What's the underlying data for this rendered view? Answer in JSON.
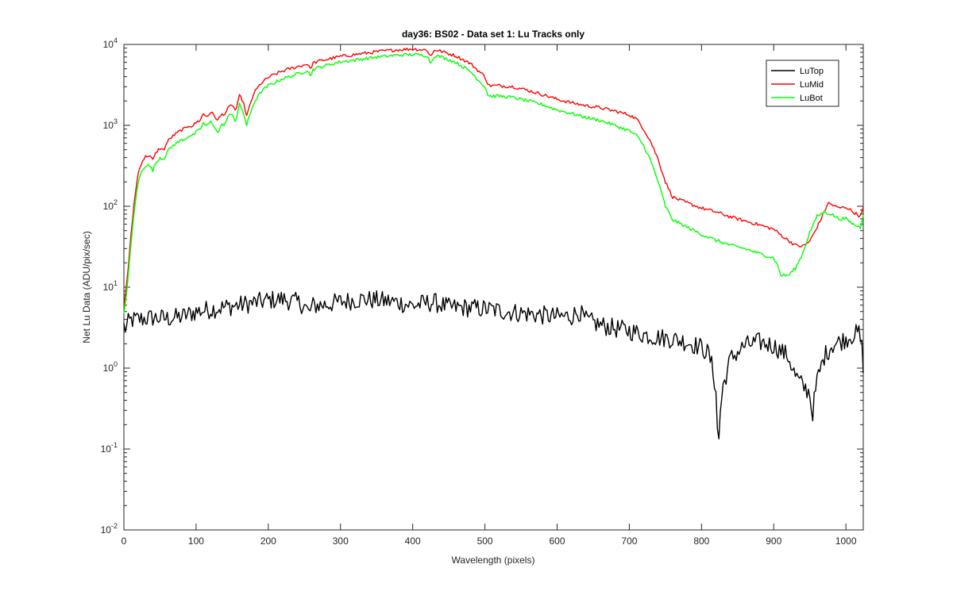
{
  "chart_data": {
    "type": "line",
    "title": "day36: BS02 - Data set 1: Lu Tracks only",
    "xlabel": "Wavelength (pixels)",
    "ylabel": "Net Lu Data (ADU/pix/sec)",
    "xlim": [
      0,
      1024
    ],
    "ylim": [
      0.01,
      10000
    ],
    "yscale": "log",
    "grid": false,
    "legend_position": "top-right",
    "x_ticks": [
      "0",
      "100",
      "200",
      "300",
      "400",
      "500",
      "600",
      "700",
      "800",
      "900",
      "1000"
    ],
    "y_ticks": [
      {
        "base": "10",
        "exp": "-2"
      },
      {
        "base": "10",
        "exp": "-1"
      },
      {
        "base": "10",
        "exp": "0"
      },
      {
        "base": "10",
        "exp": "1"
      },
      {
        "base": "10",
        "exp": "2"
      },
      {
        "base": "10",
        "exp": "3"
      },
      {
        "base": "10",
        "exp": "4"
      }
    ],
    "series": [
      {
        "name": "LuTop",
        "color": "#000000",
        "noise": 0.12,
        "x": [
          0,
          3,
          6,
          10,
          20,
          40,
          60,
          80,
          100,
          130,
          160,
          180,
          200,
          220,
          240,
          250,
          256,
          262,
          280,
          300,
          330,
          350,
          380,
          400,
          420,
          430,
          450,
          470,
          500,
          530,
          560,
          600,
          620,
          630,
          640,
          660,
          680,
          700,
          720,
          740,
          760,
          780,
          800,
          810,
          815,
          820,
          823,
          826,
          830,
          840,
          860,
          880,
          900,
          920,
          930,
          940,
          950,
          953,
          960,
          970,
          980,
          1000,
          1010,
          1018,
          1022,
          1024
        ],
        "y": [
          3.3,
          3.0,
          3.6,
          3.9,
          4.0,
          4.2,
          4.1,
          4.3,
          5.0,
          5.5,
          6.0,
          6.4,
          6.9,
          7.1,
          6.5,
          6.0,
          4.8,
          5.9,
          6.1,
          6.6,
          7.1,
          6.9,
          6.5,
          5.9,
          6.4,
          6.5,
          5.6,
          5.6,
          5.4,
          5.0,
          4.7,
          4.3,
          4.4,
          5.0,
          3.9,
          3.4,
          3.1,
          2.9,
          2.6,
          2.4,
          2.3,
          2.1,
          1.8,
          1.5,
          1.0,
          0.55,
          0.09,
          0.3,
          0.6,
          1.3,
          1.9,
          2.1,
          1.9,
          1.4,
          0.8,
          0.6,
          0.5,
          0.25,
          0.7,
          1.4,
          1.9,
          2.3,
          2.6,
          2.7,
          1.8,
          1.1
        ]
      },
      {
        "name": "LuMid",
        "color": "#ff0000",
        "noise": 0.02,
        "x": [
          0,
          5,
          10,
          15,
          20,
          25,
          30,
          35,
          40,
          45,
          50,
          55,
          60,
          65,
          70,
          75,
          80,
          85,
          90,
          95,
          100,
          105,
          110,
          115,
          120,
          125,
          130,
          135,
          140,
          145,
          150,
          155,
          160,
          165,
          170,
          180,
          190,
          200,
          210,
          220,
          230,
          240,
          250,
          255,
          258,
          262,
          270,
          280,
          290,
          300,
          320,
          340,
          360,
          380,
          400,
          420,
          425,
          430,
          440,
          460,
          480,
          500,
          505,
          520,
          540,
          560,
          580,
          600,
          620,
          640,
          660,
          680,
          700,
          710,
          720,
          730,
          740,
          750,
          760,
          780,
          800,
          820,
          840,
          860,
          880,
          900,
          910,
          920,
          930,
          940,
          950,
          960,
          970,
          975,
          980,
          990,
          1000,
          1010,
          1020,
          1024
        ],
        "y": [
          5.5,
          14,
          45,
          130,
          260,
          360,
          410,
          430,
          370,
          470,
          520,
          490,
          620,
          700,
          760,
          820,
          880,
          910,
          1000,
          980,
          1080,
          1150,
          1380,
          1280,
          1450,
          1330,
          1150,
          1350,
          1400,
          1650,
          1800,
          1500,
          2300,
          2000,
          1300,
          2500,
          3300,
          3900,
          4300,
          4700,
          5000,
          5300,
          5600,
          5800,
          4900,
          5900,
          6200,
          6500,
          6800,
          7100,
          7500,
          7900,
          8300,
          8600,
          8800,
          8500,
          7000,
          8600,
          8200,
          7200,
          5800,
          4000,
          3100,
          3100,
          3000,
          2700,
          2400,
          2100,
          1900,
          1750,
          1650,
          1500,
          1350,
          1200,
          900,
          620,
          380,
          200,
          130,
          110,
          95,
          85,
          74,
          66,
          59,
          52,
          44,
          38,
          33,
          32,
          37,
          55,
          85,
          110,
          105,
          95,
          98,
          85,
          75,
          95
        ]
      },
      {
        "name": "LuBot",
        "color": "#00ff00",
        "noise": 0.02,
        "x": [
          0,
          5,
          10,
          15,
          20,
          25,
          30,
          35,
          40,
          45,
          50,
          55,
          60,
          65,
          70,
          75,
          80,
          85,
          90,
          95,
          100,
          105,
          110,
          115,
          120,
          125,
          130,
          135,
          140,
          145,
          150,
          155,
          160,
          165,
          170,
          180,
          190,
          200,
          210,
          220,
          230,
          240,
          250,
          255,
          258,
          262,
          270,
          280,
          290,
          300,
          320,
          340,
          360,
          380,
          400,
          420,
          425,
          430,
          440,
          460,
          480,
          500,
          505,
          520,
          540,
          560,
          580,
          600,
          620,
          640,
          660,
          680,
          700,
          710,
          720,
          730,
          740,
          750,
          760,
          780,
          800,
          820,
          840,
          860,
          880,
          900,
          905,
          910,
          920,
          930,
          940,
          950,
          960,
          970,
          980,
          990,
          1000,
          1010,
          1020,
          1024
        ],
        "y": [
          4.5,
          11,
          35,
          100,
          200,
          280,
          320,
          320,
          280,
          350,
          400,
          380,
          470,
          530,
          580,
          620,
          660,
          680,
          750,
          740,
          820,
          880,
          1060,
          980,
          1100,
          1000,
          800,
          1000,
          1050,
          1300,
          1400,
          1100,
          1800,
          1500,
          1000,
          1900,
          2600,
          3100,
          3400,
          3800,
          4000,
          4300,
          4600,
          4900,
          4000,
          4900,
          5200,
          5500,
          5800,
          6100,
          6400,
          6800,
          7100,
          7400,
          7500,
          7300,
          5800,
          7300,
          7000,
          6000,
          4600,
          3000,
          2300,
          2300,
          2200,
          2000,
          1800,
          1550,
          1400,
          1250,
          1150,
          1000,
          850,
          750,
          560,
          360,
          200,
          100,
          68,
          55,
          45,
          38,
          33,
          30,
          26,
          23,
          19,
          14,
          14,
          17,
          26,
          48,
          75,
          85,
          80,
          70,
          70,
          60,
          55,
          80
        ]
      }
    ]
  }
}
